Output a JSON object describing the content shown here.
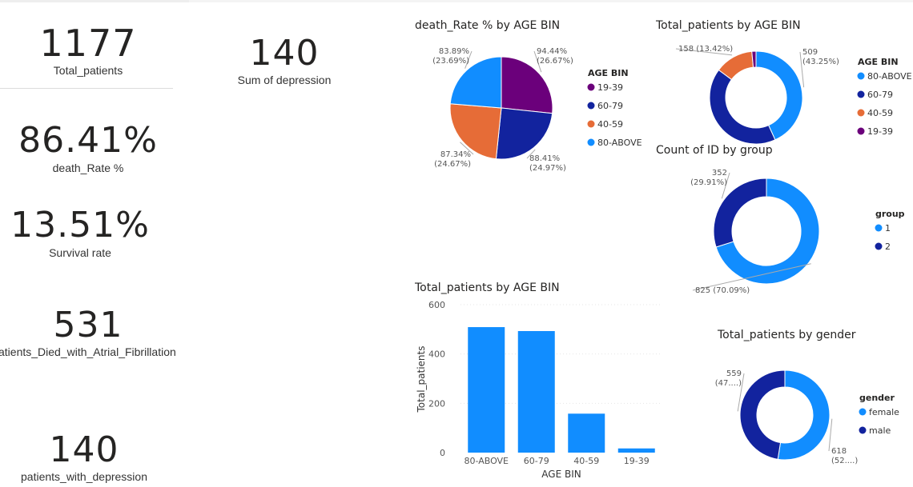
{
  "kpis": {
    "total_patients": {
      "value": "1177",
      "label": "Total_patients"
    },
    "depression_sum": {
      "value": "140",
      "label": "Sum of depression"
    },
    "death_rate": {
      "value": "86.41%",
      "label": "death_Rate %"
    },
    "survival_rate": {
      "value": "13.51%",
      "label": "Survival rate"
    },
    "died_af": {
      "value": "531",
      "label": "atients_Died_with_Atrial_Fibrillation"
    },
    "with_depression": {
      "value": "140",
      "label": "patients_with_depression"
    }
  },
  "colors": {
    "age_19_39": "#6b007b",
    "age_60_79": "#12239e",
    "age_40_59": "#e66c37",
    "age_80_above": "#118dff",
    "grid": "#e6e6e6"
  },
  "chart_data": [
    {
      "id": "death_rate_pie",
      "type": "pie",
      "title": "death_Rate % by AGE BIN",
      "legend_title": "AGE BIN",
      "legend_position": "right",
      "slices": [
        {
          "name": "19-39",
          "value": 94.44,
          "label": "94.44%",
          "pct_label": "(26.67%)",
          "color": "#6b007b"
        },
        {
          "name": "60-79",
          "value": 88.41,
          "label": "88.41%",
          "pct_label": "(24.97%)",
          "color": "#12239e"
        },
        {
          "name": "40-59",
          "value": 87.34,
          "label": "87.34%",
          "pct_label": "(24.67%)",
          "color": "#e66c37"
        },
        {
          "name": "80-ABOVE",
          "value": 83.89,
          "label": "83.89%",
          "pct_label": "(23.69%)",
          "color": "#118dff"
        }
      ]
    },
    {
      "id": "patients_age_donut",
      "type": "pie",
      "title": "Total_patients by AGE BIN",
      "legend_title": "AGE BIN",
      "legend_position": "right",
      "legend": [
        "80-ABOVE",
        "60-79",
        "40-59",
        "19-39"
      ],
      "slices": [
        {
          "name": "80-ABOVE",
          "value": 509,
          "label": "509",
          "pct_label": "(43.25%)",
          "color": "#118dff"
        },
        {
          "name": "60-79",
          "value": 493,
          "label": "",
          "pct_label": "",
          "color": "#12239e"
        },
        {
          "name": "40-59",
          "value": 158,
          "label": "158 (13.42%)",
          "pct_label": "",
          "color": "#e66c37"
        },
        {
          "name": "19-39",
          "value": 17,
          "label": "",
          "pct_label": "",
          "color": "#6b007b"
        }
      ]
    },
    {
      "id": "group_donut",
      "type": "pie",
      "title": "Count of ID by group",
      "legend_title": "group",
      "legend_position": "right",
      "slices": [
        {
          "name": "1",
          "value": 825,
          "label": "825 (70.09%)",
          "pct_label": "",
          "color": "#118dff"
        },
        {
          "name": "2",
          "value": 352,
          "label": "352",
          "pct_label": "(29.91%)",
          "color": "#12239e"
        }
      ]
    },
    {
      "id": "patients_bar",
      "type": "bar",
      "title": "Total_patients by AGE BIN",
      "xlabel": "AGE BIN",
      "ylabel": "Total_patients",
      "categories": [
        "80-ABOVE",
        "60-79",
        "40-59",
        "19-39"
      ],
      "values": [
        509,
        493,
        158,
        17
      ],
      "ylim": [
        0,
        600
      ],
      "yticks": [
        0,
        200,
        400,
        600
      ],
      "grid": true,
      "color": "#118dff"
    },
    {
      "id": "gender_donut",
      "type": "pie",
      "title": "Total_patients by gender",
      "legend_title": "gender",
      "legend_position": "right",
      "slices": [
        {
          "name": "female",
          "value": 618,
          "label": "618",
          "pct_label": "(52....)",
          "color": "#118dff"
        },
        {
          "name": "male",
          "value": 559,
          "label": "559",
          "pct_label": "(47....)",
          "color": "#12239e"
        }
      ]
    }
  ]
}
